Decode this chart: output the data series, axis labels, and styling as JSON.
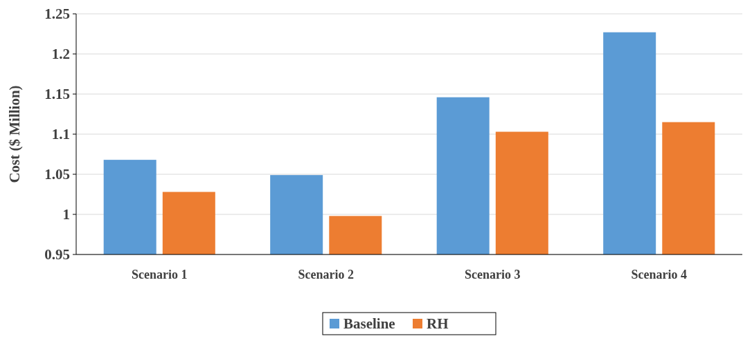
{
  "chart_data": {
    "type": "bar",
    "ylabel": "Cost ($ Million)",
    "categories": [
      "Scenario 1",
      "Scenario 2",
      "Scenario 3",
      "Scenario 4"
    ],
    "series": [
      {
        "name": "Baseline",
        "color": "#5b9bd5",
        "values": [
          1.068,
          1.049,
          1.146,
          1.227
        ]
      },
      {
        "name": "RH",
        "color": "#ed7d31",
        "values": [
          1.028,
          0.998,
          1.103,
          1.115
        ]
      }
    ],
    "ylim": [
      0.95,
      1.25
    ],
    "yticks": [
      0.95,
      1,
      1.05,
      1.1,
      1.15,
      1.2,
      1.25
    ],
    "grid": "y",
    "legend": "bottom"
  }
}
